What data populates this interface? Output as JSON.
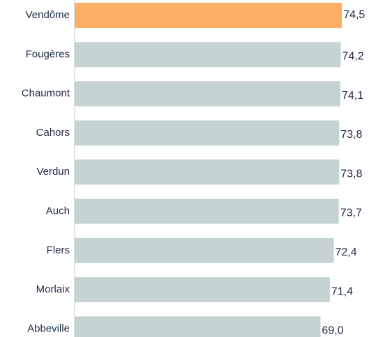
{
  "chart_data": {
    "type": "barh",
    "categories": [
      "Vendôme",
      "Fougères",
      "Chaumont",
      "Cahors",
      "Verdun",
      "Auch",
      "Flers",
      "Morlaix",
      "Abbeville"
    ],
    "values": [
      74.5,
      74.2,
      74.1,
      73.8,
      73.8,
      73.7,
      72.4,
      71.4,
      69.0
    ],
    "value_labels": [
      "74,5",
      "74,2",
      "74,1",
      "73,8",
      "73,8",
      "73,7",
      "72,4",
      "71,4",
      "69,0"
    ],
    "colors": [
      "#fdb065",
      "#c5d3d3",
      "#c5d3d3",
      "#c5d3d3",
      "#c5d3d3",
      "#c5d3d3",
      "#c5d3d3",
      "#c5d3d3",
      "#c5d3d3"
    ],
    "xlim": [
      6,
      75
    ]
  }
}
